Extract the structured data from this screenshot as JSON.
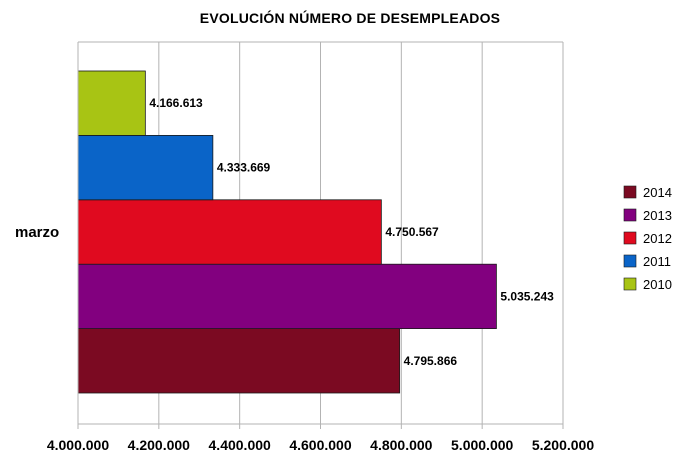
{
  "chart_data": {
    "type": "bar",
    "orientation": "horizontal",
    "title": "EVOLUCIÓN NÚMERO DE DESEMPLEADOS",
    "categories": [
      "marzo"
    ],
    "series": [
      {
        "name": "2014",
        "values": [
          4795866
        ],
        "label": "4.795.866",
        "color": "#7b0a22"
      },
      {
        "name": "2013",
        "values": [
          5035243
        ],
        "label": "5.035.243",
        "color": "#82007f"
      },
      {
        "name": "2012",
        "values": [
          4750567
        ],
        "label": "4.750.567",
        "color": "#e00a1f"
      },
      {
        "name": "2011",
        "values": [
          4333669
        ],
        "label": "4.333.669",
        "color": "#0a64c8"
      },
      {
        "name": "2010",
        "values": [
          4166613
        ],
        "label": "4.166.613",
        "color": "#a8c414"
      }
    ],
    "xlim": [
      4000000,
      5200000
    ],
    "xticks": [
      4000000,
      4200000,
      4400000,
      4600000,
      4800000,
      5000000,
      5200000
    ],
    "xtick_labels": [
      "4.000.000",
      "4.200.000",
      "4.400.000",
      "4.600.000",
      "4.800.000",
      "5.000.000",
      "5.200.000"
    ],
    "grid": true,
    "legend": "right"
  }
}
